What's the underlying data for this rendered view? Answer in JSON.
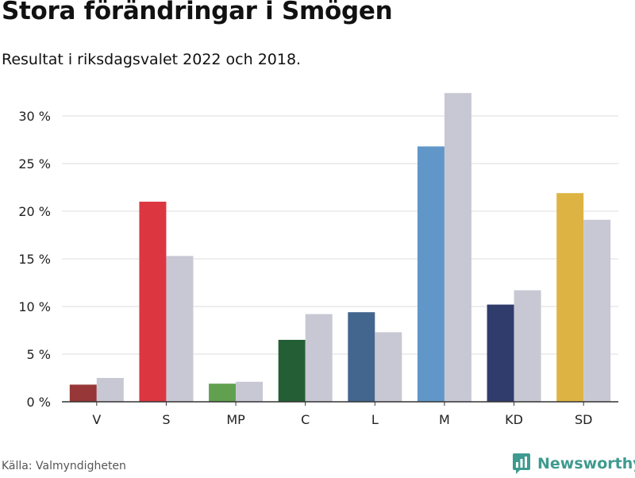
{
  "header": {
    "title": "Stora förändringar i Smögen",
    "subtitle": "Resultat i riksdagsvalet 2022 och 2018."
  },
  "footer": {
    "source": "Källa: Valmyndigheten",
    "brand": "Newsworthy",
    "brand_icon": "newsworthy-logo-icon",
    "brand_color": "#3f9a8f"
  },
  "chart_data": {
    "type": "bar",
    "categories": [
      "V",
      "S",
      "MP",
      "C",
      "L",
      "M",
      "KD",
      "SD"
    ],
    "series": [
      {
        "values": [
          1.8,
          21.0,
          1.9,
          6.5,
          9.4,
          26.8,
          10.2,
          21.9
        ],
        "colors": [
          "#973737",
          "#dc3741",
          "#61a04f",
          "#245e35",
          "#43668e",
          "#6197c8",
          "#303c6c",
          "#ddb444"
        ]
      },
      {
        "values": [
          2.5,
          15.3,
          2.1,
          9.2,
          7.3,
          32.4,
          11.7,
          19.1
        ],
        "color": "#c8c8d4"
      }
    ],
    "ylim": [
      0,
      33
    ],
    "yticks": [
      0,
      5,
      10,
      15,
      20,
      25,
      30
    ],
    "ytick_labels": [
      "0 %",
      "5 %",
      "10 %",
      "15 %",
      "20 %",
      "25 %",
      "30 %"
    ],
    "grid": true,
    "xlabel": "",
    "ylabel": ""
  }
}
